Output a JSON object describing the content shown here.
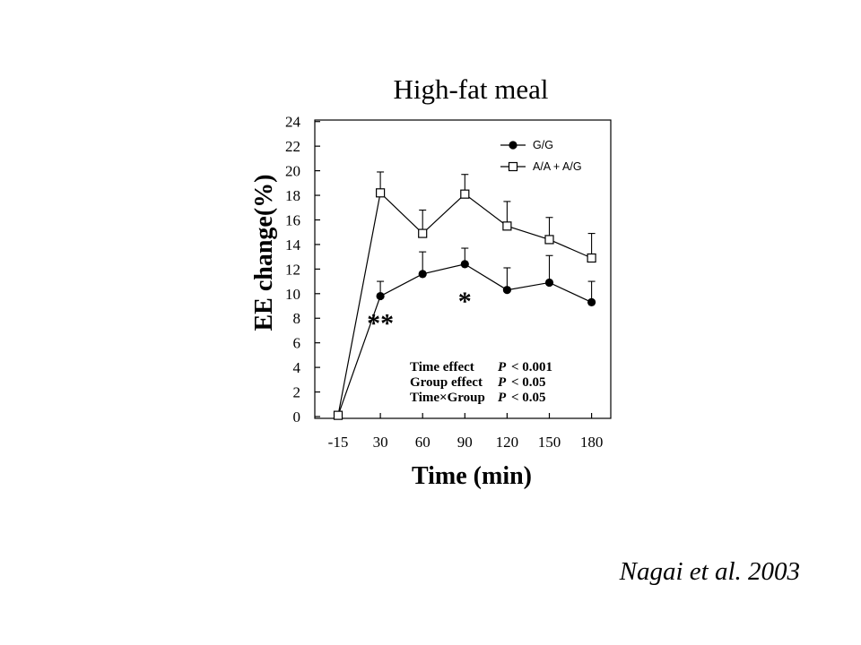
{
  "chart_data": {
    "type": "line",
    "title": "High-fat meal",
    "xlabel": "Time (min)",
    "ylabel": "EE change(%)",
    "x": [
      "-15",
      "30",
      "60",
      "90",
      "120",
      "150",
      "180"
    ],
    "ylim": [
      0,
      24
    ],
    "yticks": [
      "0",
      "2",
      "4",
      "6",
      "8",
      "10",
      "12",
      "14",
      "16",
      "18",
      "20",
      "22",
      "24"
    ],
    "grid": false,
    "legend_position": "top-right",
    "series": [
      {
        "name": "G/G",
        "marker": "filled-circle",
        "values": [
          0.1,
          9.8,
          11.6,
          12.4,
          10.3,
          10.9,
          9.3
        ],
        "errors": [
          0,
          1.2,
          1.8,
          1.3,
          1.8,
          2.2,
          1.7
        ]
      },
      {
        "name": "A/A + A/G",
        "marker": "open-square",
        "values": [
          0.1,
          18.2,
          14.9,
          18.1,
          15.5,
          14.4,
          12.9
        ],
        "errors": [
          0,
          1.7,
          1.9,
          1.6,
          2.0,
          1.8,
          2.0
        ]
      }
    ],
    "annotations": [
      {
        "text": "**",
        "x": "30",
        "y": 7.6
      },
      {
        "text": "*",
        "x": "90",
        "y": 9.4
      }
    ],
    "stats": [
      {
        "label": "Time effect",
        "p": "P",
        "op": "< 0.001"
      },
      {
        "label": "Group effect",
        "p": "P",
        "op": "< 0.05"
      },
      {
        "label": "Time×Group",
        "p": "P",
        "op": "< 0.05"
      }
    ]
  },
  "citation": {
    "authors": "Nagai et al.",
    "year": "2003"
  }
}
